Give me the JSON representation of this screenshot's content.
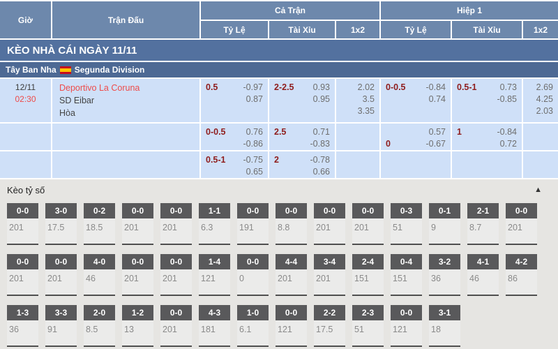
{
  "table_header": {
    "time": "Giờ",
    "match": "Trận Đấu",
    "full_time": "Cả Trận",
    "first_half": "Hiệp 1",
    "handicap": "Tỷ Lệ",
    "over_under": "Tài Xỉu",
    "one_x_two": "1x2"
  },
  "section_bar": {
    "title": "KÈO NHÀ CÁI NGÀY 11/11"
  },
  "league_bar": {
    "country": "Tây Ban Nha",
    "league": "Segunda Division",
    "flag_icon": "spain-flag"
  },
  "match": {
    "date": "12/11",
    "time": "02:30",
    "home_team": "Deportivo La Coruna",
    "away_team": "SD Eibar",
    "draw_label": "Hòa"
  },
  "odds_rows": [
    {
      "ft_handicap": [
        {
          "hdp": "0.5",
          "odds": "-0.97"
        },
        {
          "hdp": "",
          "odds": "0.87"
        }
      ],
      "ft_over_under": [
        {
          "hdp": "2-2.5",
          "odds": "0.93"
        },
        {
          "hdp": "",
          "odds": "0.95"
        }
      ],
      "ft_1x2": [
        "2.02",
        "3.5",
        "3.35"
      ],
      "h1_handicap": [
        {
          "hdp": "0-0.5",
          "odds": "-0.84"
        },
        {
          "hdp": "",
          "odds": "0.74"
        }
      ],
      "h1_over_under": [
        {
          "hdp": "0.5-1",
          "odds": "0.73"
        },
        {
          "hdp": "",
          "odds": "-0.85"
        }
      ],
      "h1_1x2": [
        "2.69",
        "4.25",
        "2.03"
      ]
    },
    {
      "ft_handicap": [
        {
          "hdp": "0-0.5",
          "odds": "0.76"
        },
        {
          "hdp": "",
          "odds": "-0.86"
        }
      ],
      "ft_over_under": [
        {
          "hdp": "2.5",
          "odds": "0.71"
        },
        {
          "hdp": "",
          "odds": "-0.83"
        }
      ],
      "ft_1x2": [],
      "h1_handicap": [
        {
          "hdp": "",
          "odds": "0.57"
        },
        {
          "hdp": "0",
          "odds": "-0.67"
        }
      ],
      "h1_over_under": [
        {
          "hdp": "1",
          "odds": "-0.84"
        },
        {
          "hdp": "",
          "odds": "0.72"
        }
      ],
      "h1_1x2": []
    },
    {
      "ft_handicap": [
        {
          "hdp": "0.5-1",
          "odds": "-0.75"
        },
        {
          "hdp": "",
          "odds": "0.65"
        }
      ],
      "ft_over_under": [
        {
          "hdp": "2",
          "odds": "-0.78"
        },
        {
          "hdp": "",
          "odds": "0.66"
        }
      ],
      "ft_1x2": [],
      "h1_handicap": [],
      "h1_over_under": [],
      "h1_1x2": []
    }
  ],
  "score_section": {
    "title": "Kèo tỷ số",
    "collapse_icon": "▲",
    "rows": [
      [
        {
          "score": "0-0",
          "odds": "201"
        },
        {
          "score": "3-0",
          "odds": "17.5"
        },
        {
          "score": "0-2",
          "odds": "18.5"
        },
        {
          "score": "0-0",
          "odds": "201"
        },
        {
          "score": "0-0",
          "odds": "201"
        },
        {
          "score": "1-1",
          "odds": "6.3"
        },
        {
          "score": "0-0",
          "odds": "191"
        },
        {
          "score": "0-0",
          "odds": "8.8"
        },
        {
          "score": "0-0",
          "odds": "201"
        },
        {
          "score": "0-0",
          "odds": "201"
        },
        {
          "score": "0-3",
          "odds": "51"
        },
        {
          "score": "0-1",
          "odds": "9"
        },
        {
          "score": "2-1",
          "odds": "8.7"
        },
        {
          "score": "0-0",
          "odds": "201"
        }
      ],
      [
        {
          "score": "0-0",
          "odds": "201"
        },
        {
          "score": "0-0",
          "odds": "201"
        },
        {
          "score": "4-0",
          "odds": "46"
        },
        {
          "score": "0-0",
          "odds": "201"
        },
        {
          "score": "0-0",
          "odds": "201"
        },
        {
          "score": "1-4",
          "odds": "121"
        },
        {
          "score": "0-0",
          "odds": "0"
        },
        {
          "score": "4-4",
          "odds": "201"
        },
        {
          "score": "3-4",
          "odds": "201"
        },
        {
          "score": "2-4",
          "odds": "151"
        },
        {
          "score": "0-4",
          "odds": "151"
        },
        {
          "score": "3-2",
          "odds": "36"
        },
        {
          "score": "4-1",
          "odds": "46"
        },
        {
          "score": "4-2",
          "odds": "86"
        }
      ],
      [
        {
          "score": "1-3",
          "odds": "36"
        },
        {
          "score": "3-3",
          "odds": "91"
        },
        {
          "score": "2-0",
          "odds": "8.5"
        },
        {
          "score": "1-2",
          "odds": "13"
        },
        {
          "score": "0-0",
          "odds": "201"
        },
        {
          "score": "4-3",
          "odds": "181"
        },
        {
          "score": "1-0",
          "odds": "6.1"
        },
        {
          "score": "0-0",
          "odds": "121"
        },
        {
          "score": "2-2",
          "odds": "17.5"
        },
        {
          "score": "2-3",
          "odds": "51"
        },
        {
          "score": "0-0",
          "odds": "121"
        },
        {
          "score": "3-1",
          "odds": "18"
        }
      ]
    ]
  },
  "colors": {
    "header_blue": "#6d88ac",
    "section_bar_blue": "#53719f",
    "league_bar_blue": "#4d6994",
    "row_light_blue": "#cfe0f8",
    "handicap_maroon": "#8f1d1d",
    "odds_gray": "#6e6e6e",
    "highlight_red": "#ee4b4a",
    "score_box_dark": "#59595b",
    "score_section_gray": "#e6e5e2"
  }
}
